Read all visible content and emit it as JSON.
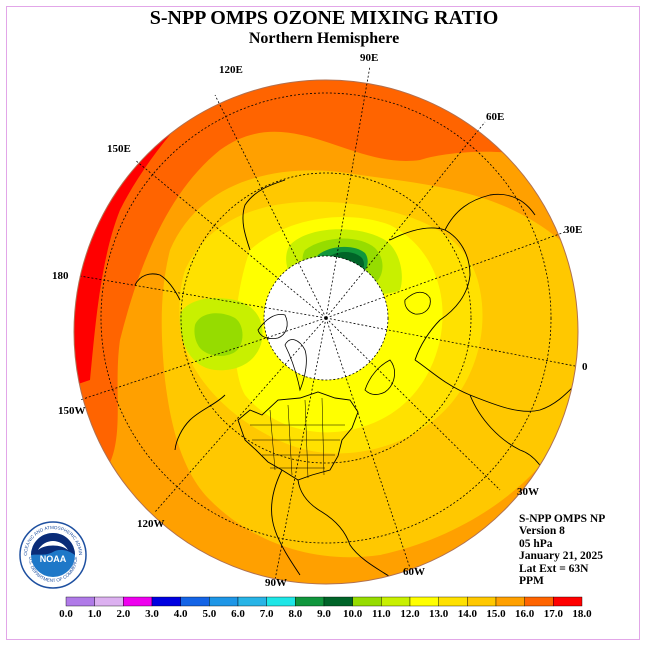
{
  "title": "S-NPP OMPS OZONE MIXING RATIO",
  "subtitle": "Northern Hemisphere",
  "longitude_labels": [
    {
      "text": "90E",
      "id": "lon-90e"
    },
    {
      "text": "120E",
      "id": "lon-120e"
    },
    {
      "text": "60E",
      "id": "lon-60e"
    },
    {
      "text": "150E",
      "id": "lon-150e"
    },
    {
      "text": "30E",
      "id": "lon-30e"
    },
    {
      "text": "180",
      "id": "lon-180"
    },
    {
      "text": "0",
      "id": "lon-0"
    },
    {
      "text": "150W",
      "id": "lon-150w"
    },
    {
      "text": "30W",
      "id": "lon-30w"
    },
    {
      "text": "120W",
      "id": "lon-120w"
    },
    {
      "text": "60W",
      "id": "lon-60w"
    },
    {
      "text": "90W",
      "id": "lon-90w"
    }
  ],
  "info": {
    "instrument": "S-NPP OMPS NP",
    "version": "Version 8",
    "level": "05 hPa",
    "date": "January 21, 2025",
    "lat_ext": "Lat Ext = 63N",
    "units": "PPM"
  },
  "logo": {
    "text": "NOAA",
    "ring_text": "NATIONAL OCEANIC AND ATMOSPHERIC ADMINISTRATION",
    "ring_text_bottom": "U.S. DEPARTMENT OF COMMERCE"
  },
  "colorbar": {
    "labels": [
      "0.0",
      "1.0",
      "2.0",
      "3.0",
      "4.0",
      "5.0",
      "6.0",
      "7.0",
      "8.0",
      "9.0",
      "10.0",
      "11.0",
      "12.0",
      "13.0",
      "14.0",
      "15.0",
      "16.0",
      "17.0",
      "18.0"
    ],
    "colors": [
      "#b07ae8",
      "#dcb0f0",
      "#ee00ee",
      "#0000e0",
      "#1464e6",
      "#1e96e6",
      "#28b4e6",
      "#1ee6e6",
      "#10963c",
      "#006428",
      "#96dc00",
      "#c8f000",
      "#ffff00",
      "#ffe100",
      "#ffc800",
      "#ffa000",
      "#ff6400",
      "#ff0000",
      "#8c5a3c"
    ]
  },
  "map": {
    "ocean_no_data_color": "#ffffff",
    "field_colors": {
      "red": "#ff0000",
      "orange_red": "#ff6400",
      "orange": "#ffa000",
      "gold": "#ffc800",
      "amber": "#ffe100",
      "yellow": "#ffff00",
      "light_green": "#c8f000",
      "green": "#96dc00",
      "dark_green": "#006428",
      "medium_green": "#10963c"
    }
  }
}
